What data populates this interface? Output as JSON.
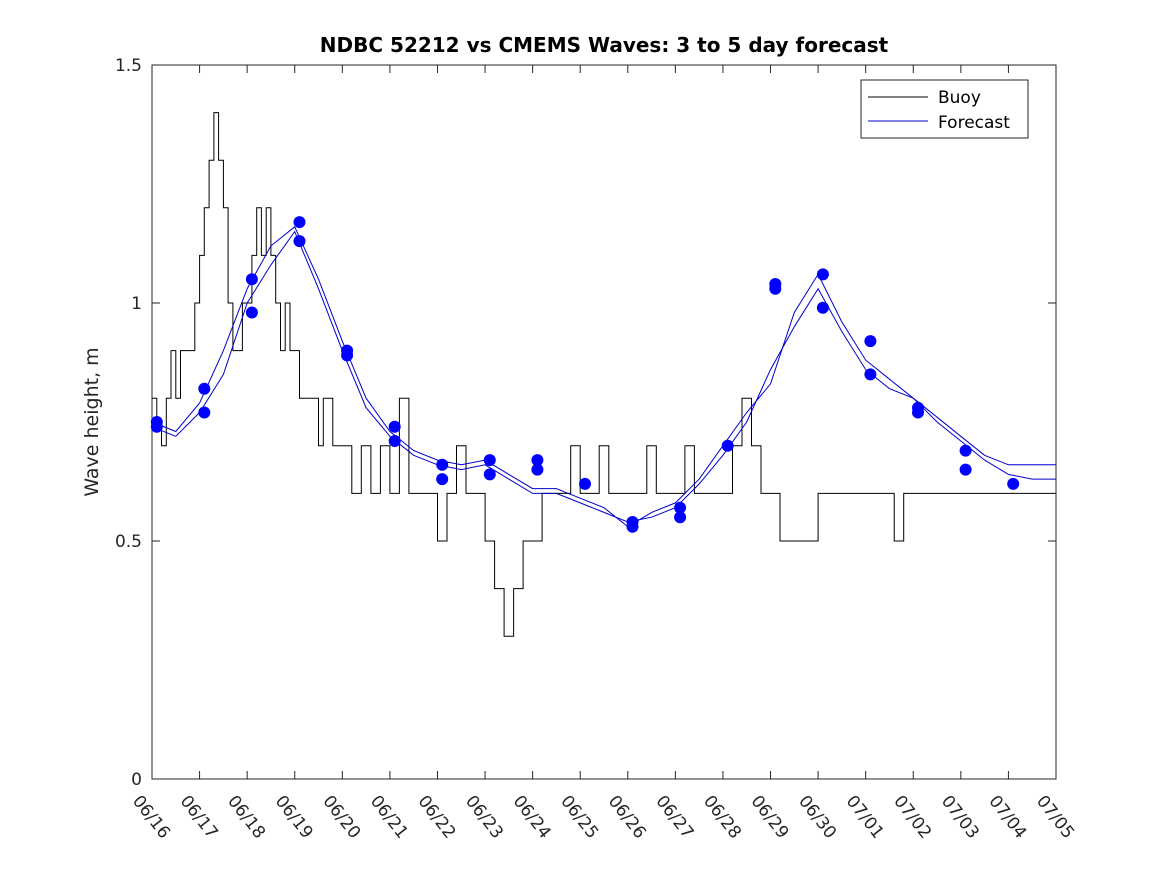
{
  "chart_data": {
    "type": "line",
    "title": "NDBC 52212 vs CMEMS Waves: 3 to 5 day forecast",
    "xlabel": "",
    "ylabel": "Wave height, m",
    "xlim": [
      "06/16",
      "07/05"
    ],
    "ylim": [
      0,
      1.5
    ],
    "x_ticks": [
      "06/16",
      "06/17",
      "06/18",
      "06/19",
      "06/20",
      "06/21",
      "06/22",
      "06/23",
      "06/24",
      "06/25",
      "06/26",
      "06/27",
      "06/28",
      "06/29",
      "06/30",
      "07/01",
      "07/02",
      "07/03",
      "07/04",
      "07/05"
    ],
    "y_ticks": [
      "0",
      "0.5",
      "1",
      "1.5"
    ],
    "grid": false,
    "legend": {
      "position": "top-right",
      "entries": [
        "Buoy",
        "Forecast"
      ]
    },
    "colors": {
      "buoy": "#000000",
      "forecast": "#0000cc",
      "marker": "#0000ff",
      "axis": "#262626"
    },
    "series": [
      {
        "name": "Buoy",
        "x": [
          0,
          0.1,
          0.2,
          0.3,
          0.4,
          0.5,
          0.6,
          0.7,
          0.8,
          0.9,
          1.0,
          1.1,
          1.2,
          1.3,
          1.4,
          1.5,
          1.6,
          1.7,
          1.8,
          1.9,
          2.0,
          2.1,
          2.2,
          2.3,
          2.4,
          2.5,
          2.6,
          2.7,
          2.8,
          2.9,
          3.0,
          3.1,
          3.2,
          3.3,
          3.4,
          3.5,
          3.6,
          3.7,
          3.8,
          3.9,
          4.0,
          4.2,
          4.4,
          4.6,
          4.8,
          5.0,
          5.2,
          5.4,
          5.6,
          5.8,
          6.0,
          6.2,
          6.4,
          6.6,
          6.8,
          7.0,
          7.2,
          7.4,
          7.6,
          7.8,
          8.0,
          8.2,
          8.4,
          8.6,
          8.8,
          9.0,
          9.2,
          9.4,
          9.6,
          9.8,
          10.0,
          10.2,
          10.4,
          10.6,
          10.8,
          11.0,
          11.2,
          11.4,
          11.6,
          11.8,
          12.0,
          12.2,
          12.4,
          12.6,
          12.8,
          13.0,
          13.2,
          13.4,
          13.6,
          13.8,
          14.0,
          14.2,
          14.4,
          14.6,
          14.8,
          15.0,
          15.2,
          15.4,
          15.6,
          15.8,
          16.0,
          16.2,
          16.4,
          16.6,
          16.8,
          17.0,
          17.2,
          17.4,
          17.6,
          17.8,
          18.0,
          18.2,
          18.4,
          18.6,
          18.8,
          19.0
        ],
        "values": [
          0.8,
          0.75,
          0.7,
          0.8,
          0.9,
          0.8,
          0.9,
          0.9,
          0.9,
          1.0,
          1.1,
          1.2,
          1.3,
          1.4,
          1.3,
          1.2,
          1.0,
          0.9,
          0.9,
          1.0,
          1.0,
          1.1,
          1.2,
          1.1,
          1.2,
          1.1,
          1.0,
          0.9,
          1.0,
          0.9,
          0.9,
          0.8,
          0.8,
          0.8,
          0.8,
          0.7,
          0.8,
          0.8,
          0.7,
          0.7,
          0.7,
          0.6,
          0.7,
          0.6,
          0.7,
          0.6,
          0.8,
          0.6,
          0.6,
          0.6,
          0.5,
          0.6,
          0.7,
          0.6,
          0.6,
          0.5,
          0.4,
          0.3,
          0.4,
          0.5,
          0.5,
          0.6,
          0.6,
          0.6,
          0.7,
          0.6,
          0.6,
          0.7,
          0.6,
          0.6,
          0.6,
          0.6,
          0.7,
          0.6,
          0.6,
          0.6,
          0.7,
          0.6,
          0.6,
          0.6,
          0.6,
          0.7,
          0.8,
          0.7,
          0.6,
          0.6,
          0.5,
          0.5,
          0.5,
          0.5,
          0.6,
          0.6,
          0.6,
          0.6,
          0.6,
          0.6,
          0.6,
          0.6,
          0.5,
          0.6,
          0.6,
          0.6,
          0.6,
          0.6,
          0.6,
          0.6,
          0.6,
          0.6,
          0.6,
          0.6,
          0.6,
          0.6,
          0.6,
          0.6,
          0.6,
          0.6
        ]
      },
      {
        "name": "Forecast",
        "x": [
          0,
          0.5,
          1.0,
          1.5,
          2.0,
          2.5,
          3.0,
          3.5,
          4.0,
          4.5,
          5.0,
          5.5,
          6.0,
          6.5,
          7.0,
          7.5,
          8.0,
          8.5,
          9.0,
          9.5,
          10.0,
          10.5,
          11.0,
          11.5,
          12.0,
          12.5,
          13.0,
          13.5,
          14.0,
          14.5,
          15.0,
          15.5,
          16.0,
          16.5,
          17.0,
          17.5,
          18.0,
          18.5,
          19.0
        ],
        "values": [
          0.74,
          0.72,
          0.77,
          0.85,
          1.0,
          1.08,
          1.15,
          1.03,
          0.9,
          0.78,
          0.72,
          0.68,
          0.66,
          0.65,
          0.66,
          0.63,
          0.6,
          0.6,
          0.58,
          0.56,
          0.54,
          0.55,
          0.57,
          0.62,
          0.68,
          0.75,
          0.86,
          0.95,
          1.03,
          0.94,
          0.86,
          0.82,
          0.8,
          0.75,
          0.71,
          0.67,
          0.64,
          0.63,
          0.63
        ]
      },
      {
        "name": "Forecast",
        "x": [
          0,
          0.5,
          1.0,
          1.5,
          2.0,
          2.5,
          3.0,
          3.5,
          4.0,
          4.5,
          5.0,
          5.5,
          6.0,
          6.5,
          7.0,
          7.5,
          8.0,
          8.5,
          9.0,
          9.5,
          10.0,
          10.5,
          11.0,
          11.5,
          12.0,
          12.5,
          13.0,
          13.5,
          14.0,
          14.5,
          15.0,
          15.5,
          16.0,
          16.5,
          17.0,
          17.5,
          18.0,
          18.5,
          19.0
        ],
        "values": [
          0.75,
          0.73,
          0.79,
          0.9,
          1.03,
          1.12,
          1.16,
          1.05,
          0.92,
          0.8,
          0.73,
          0.69,
          0.67,
          0.66,
          0.67,
          0.64,
          0.61,
          0.61,
          0.59,
          0.57,
          0.53,
          0.56,
          0.58,
          0.63,
          0.7,
          0.77,
          0.83,
          0.98,
          1.06,
          0.96,
          0.88,
          0.84,
          0.8,
          0.76,
          0.72,
          0.68,
          0.66,
          0.66,
          0.66
        ]
      }
    ],
    "markers": {
      "name": "Forecast",
      "x": [
        0.1,
        0.1,
        1.1,
        1.1,
        2.1,
        2.1,
        3.1,
        3.1,
        4.1,
        4.1,
        5.1,
        5.1,
        6.1,
        6.1,
        7.1,
        7.1,
        8.1,
        8.1,
        9.1,
        10.1,
        10.1,
        11.1,
        11.1,
        12.1,
        13.1,
        13.1,
        14.1,
        14.1,
        15.1,
        15.1,
        16.1,
        16.1,
        17.1,
        17.1,
        18.1
      ],
      "values": [
        0.75,
        0.74,
        0.82,
        0.77,
        1.05,
        0.98,
        1.17,
        1.13,
        0.9,
        0.89,
        0.74,
        0.71,
        0.66,
        0.63,
        0.67,
        0.64,
        0.67,
        0.65,
        0.62,
        0.54,
        0.53,
        0.57,
        0.55,
        0.7,
        1.04,
        1.03,
        1.06,
        0.99,
        0.92,
        0.85,
        0.78,
        0.77,
        0.69,
        0.65,
        0.62
      ]
    }
  }
}
